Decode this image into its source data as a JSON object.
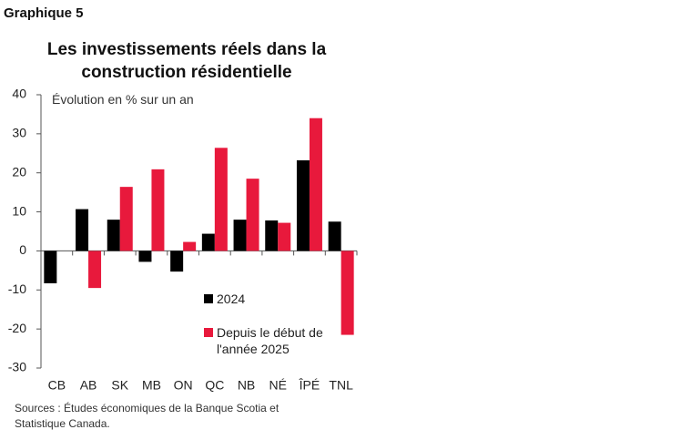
{
  "header": "Graphique 5",
  "chart_data": {
    "type": "bar",
    "title": "Les investissements réels dans la construction résidentielle",
    "subtitle": "Évolution en % sur un an",
    "categories": [
      "CB",
      "AB",
      "SK",
      "MB",
      "ON",
      "QC",
      "NB",
      "NÉ",
      "ÎPÉ",
      "TNL"
    ],
    "series": [
      {
        "name": "2024",
        "color": "#000000",
        "values": [
          -8.3,
          10.7,
          8.0,
          -2.8,
          -5.3,
          4.4,
          8.0,
          7.8,
          23.2,
          7.5
        ]
      },
      {
        "name": "Depuis le début de l'année 2025",
        "color": "#e8193c",
        "values": [
          null,
          -9.5,
          16.4,
          20.9,
          2.3,
          26.4,
          18.5,
          7.2,
          34.0,
          -21.5
        ]
      }
    ],
    "ylim": [
      -30,
      40
    ],
    "yticks": [
      -30,
      -20,
      -10,
      0,
      10,
      20,
      30,
      40
    ],
    "source": "Sources : Études économiques de la Banque Scotia et Statistique Canada."
  }
}
